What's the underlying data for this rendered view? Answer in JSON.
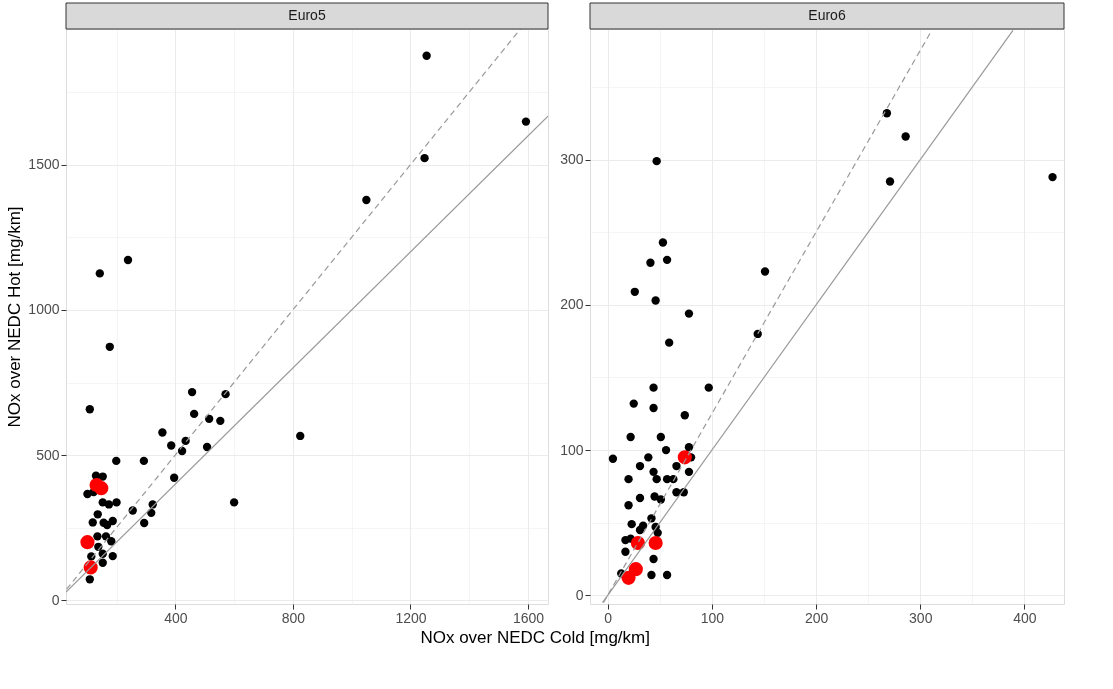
{
  "chart_data": [
    {
      "type": "scatter",
      "title": "Euro5",
      "ylabel": "NOx over NEDC Hot [mg/km]",
      "xlabel": "NOx over NEDC Cold [mg/km]",
      "xlim": [
        28,
        1668
      ],
      "ylim": [
        -13,
        1968
      ],
      "xticks": [
        {
          "value": 200,
          "label": null
        },
        400,
        {
          "value": 600,
          "label": null
        },
        800,
        {
          "value": 1000,
          "label": null
        },
        1200,
        {
          "value": 1400,
          "label": null
        },
        1600
      ],
      "yticks": [
        0,
        {
          "value": 250,
          "label": null
        },
        500,
        {
          "value": 750,
          "label": null
        },
        1000,
        {
          "value": 1250,
          "label": null
        },
        1500,
        {
          "value": 1750,
          "label": null
        }
      ],
      "grid": true,
      "tick_labels": "xy",
      "series": [
        {
          "marker": "circle",
          "color": "#000000",
          "x": [
            1255,
            1593,
            1248,
            1050,
            239,
            143,
            177,
            109,
            457,
            571,
            464,
            515,
            553,
            825,
            356,
            386,
            435,
            423,
            508,
            199,
            293,
            396,
            600,
            130,
            153,
            101,
            122,
            153,
            174,
            200,
            255,
            323,
            318,
            294,
            136,
            119,
            156,
            168,
            187,
            135,
            164,
            182,
            138,
            114,
            153,
            187,
            153,
            109
          ],
          "values": [
            1876,
            1649,
            1523,
            1379,
            1172,
            1126,
            873,
            658,
            717,
            710,
            642,
            625,
            618,
            566,
            578,
            533,
            549,
            514,
            528,
            480,
            480,
            422,
            337,
            429,
            426,
            366,
            373,
            337,
            330,
            337,
            309,
            330,
            301,
            266,
            296,
            268,
            267,
            259,
            273,
            220,
            220,
            203,
            184,
            151,
            160,
            152,
            129,
            72
          ]
        },
        {
          "marker": "circle",
          "color": "#ff0000",
          "x": [
            132,
            148,
            101,
            112
          ],
          "values": [
            397,
            386,
            200,
            113
          ]
        },
        {
          "type": "line",
          "color": "#999999",
          "line_style": "solid",
          "x": [
            28,
            1668
          ],
          "values": [
            28,
            1668
          ]
        },
        {
          "type": "line",
          "color": "#999999",
          "line_style": "dashed",
          "x": [
            30,
            1574
          ],
          "values": [
            38,
            1968
          ]
        }
      ]
    },
    {
      "type": "scatter",
      "title": "Euro6",
      "xlim": [
        -17,
        438
      ],
      "ylim": [
        -6,
        390
      ],
      "xticks": [
        0,
        {
          "value": 50,
          "label": null
        },
        100,
        {
          "value": 150,
          "label": null
        },
        200,
        {
          "value": 250,
          "label": null
        },
        300,
        {
          "value": 350,
          "label": null
        },
        400
      ],
      "yticks": [
        0,
        {
          "value": 50,
          "label": null
        },
        100,
        {
          "value": 150,
          "label": null
        },
        200,
        {
          "value": 250,
          "label": null
        },
        300,
        {
          "value": 350,
          "label": null
        }
      ],
      "grid": true,
      "series": [
        {
          "marker": "circle",
          "color": "#000000",
          "x": [
            47,
            268,
            286,
            271,
            427,
            53,
            57,
            41,
            151,
            26,
            46,
            78,
            144,
            59,
            44,
            97,
            25,
            44,
            74,
            22,
            51,
            56,
            78,
            5,
            39,
            80,
            31,
            66,
            78,
            44,
            47,
            57,
            63,
            20,
            31,
            45,
            51,
            66,
            73,
            20,
            42,
            23,
            34,
            31,
            46,
            48,
            17,
            22,
            17,
            44,
            13,
            42,
            57
          ],
          "values": [
            299,
            332,
            316,
            285,
            288,
            243,
            231,
            229,
            223,
            209,
            203,
            194,
            180,
            174,
            143,
            143,
            132,
            129,
            124,
            109,
            109,
            100,
            102,
            94,
            95,
            95,
            89,
            89,
            85,
            85,
            80,
            80,
            80,
            80,
            67,
            68,
            66,
            71,
            71,
            62,
            53,
            49,
            48,
            45,
            47,
            43,
            38,
            39,
            30,
            25,
            15,
            14,
            14
          ]
        },
        {
          "marker": "circle",
          "color": "#ff0000",
          "x": [
            74,
            29,
            46,
            27,
            20
          ],
          "values": [
            95,
            36,
            36,
            18,
            12
          ]
        },
        {
          "type": "line",
          "color": "#999999",
          "line_style": "solid",
          "x": [
            -5,
            389
          ],
          "values": [
            -5,
            389
          ]
        },
        {
          "type": "line",
          "color": "#999999",
          "line_style": "dashed",
          "x": [
            -4,
            311
          ],
          "values": [
            -5,
            389
          ]
        }
      ]
    }
  ]
}
